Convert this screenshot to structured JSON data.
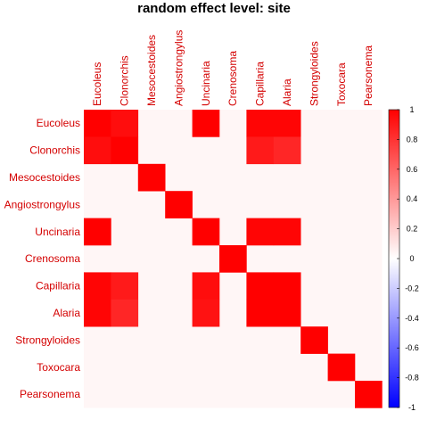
{
  "chart_data": {
    "type": "heatmap",
    "title": "random effect level: site",
    "labels": [
      "Eucoleus",
      "Clonorchis",
      "Mesocestoides",
      "Angiostrongylus",
      "Uncinaria",
      "Crenosoma",
      "Capillaria",
      "Alaria",
      "Strongyloides",
      "Toxocara",
      "Pearsonema"
    ],
    "matrix": [
      [
        1.0,
        0.95,
        0.0,
        0.0,
        1.0,
        0.0,
        0.98,
        0.98,
        0.0,
        0.0,
        0.0
      ],
      [
        0.95,
        1.0,
        0.0,
        0.0,
        0.0,
        0.0,
        0.9,
        0.85,
        0.0,
        0.0,
        0.0
      ],
      [
        0.0,
        0.0,
        1.0,
        0.0,
        0.0,
        0.0,
        0.0,
        0.0,
        0.0,
        0.0,
        0.0
      ],
      [
        0.0,
        0.0,
        0.0,
        1.0,
        0.0,
        0.0,
        0.0,
        0.0,
        0.0,
        0.0,
        0.0
      ],
      [
        1.0,
        0.0,
        0.0,
        0.0,
        1.0,
        0.0,
        0.98,
        0.98,
        0.0,
        0.0,
        0.0
      ],
      [
        0.0,
        0.0,
        0.0,
        0.0,
        0.0,
        1.0,
        0.0,
        0.0,
        0.0,
        0.0,
        0.0
      ],
      [
        0.98,
        0.9,
        0.0,
        0.0,
        0.95,
        0.0,
        1.0,
        1.0,
        0.0,
        0.0,
        0.0
      ],
      [
        0.98,
        0.85,
        0.0,
        0.0,
        0.93,
        0.0,
        1.0,
        1.0,
        0.0,
        0.0,
        0.0
      ],
      [
        0.0,
        0.0,
        0.0,
        0.0,
        0.0,
        0.0,
        0.0,
        0.0,
        1.0,
        0.0,
        0.0
      ],
      [
        0.0,
        0.0,
        0.0,
        0.0,
        0.0,
        0.0,
        0.0,
        0.0,
        0.0,
        1.0,
        0.0
      ],
      [
        0.0,
        0.0,
        0.0,
        0.0,
        0.0,
        0.0,
        0.0,
        0.0,
        0.0,
        0.0,
        1.0
      ]
    ],
    "color_scale": {
      "min": -1,
      "max": 1,
      "ticks": [
        "1",
        "0.8",
        "0.6",
        "0.4",
        "0.2",
        "0",
        "-0.2",
        "-0.4",
        "-0.6",
        "-0.8",
        "-1"
      ],
      "tick_values": [
        1,
        0.8,
        0.6,
        0.4,
        0.2,
        0,
        -0.2,
        -0.4,
        -0.6,
        -0.8,
        -1
      ],
      "colors": {
        "negative": "#0000ff",
        "zero": "#ffffff",
        "positive": "#ff0000"
      }
    },
    "label_color": "#d40000",
    "background_tint": "#fff6f6"
  }
}
